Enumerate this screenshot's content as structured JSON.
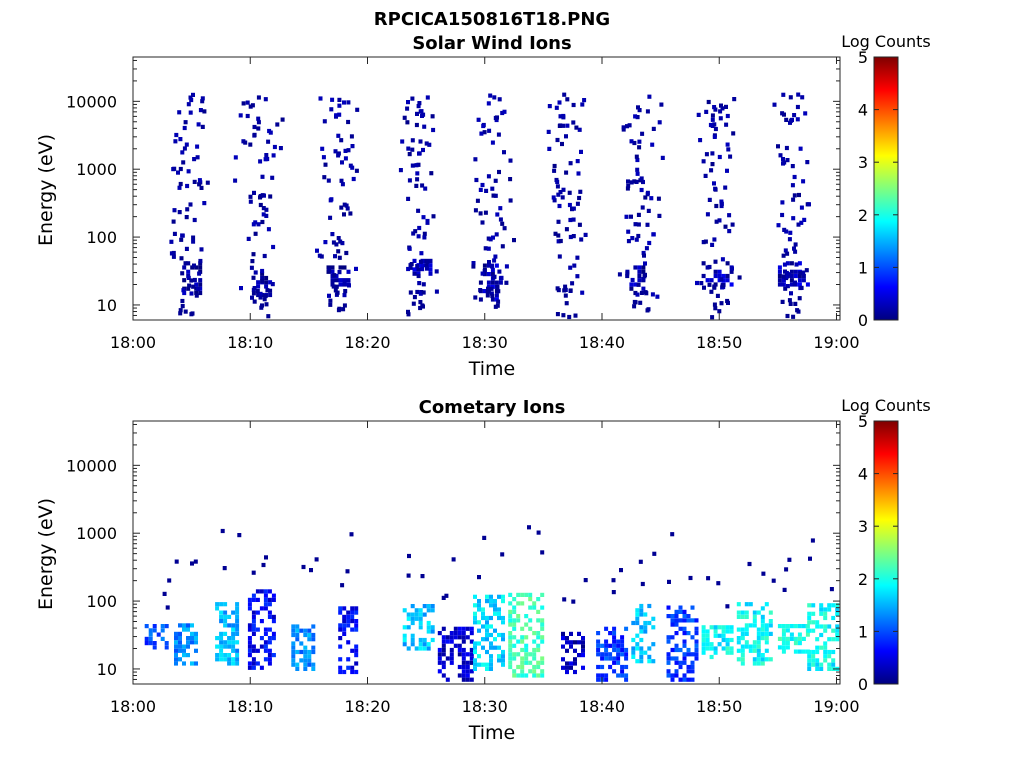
{
  "figure": {
    "title": "RPCICA150816T18.PNG"
  },
  "colorbar": {
    "label": "Log Counts",
    "min": 0,
    "max": 5,
    "ticks": [
      "0",
      "1",
      "2",
      "3",
      "4",
      "5"
    ],
    "colormap": "jet",
    "colors": [
      "#00007f",
      "#0000ff",
      "#007fff",
      "#00ffff",
      "#7fff7f",
      "#ffff00",
      "#ff7f00",
      "#ff0000",
      "#7f0000"
    ]
  },
  "chart_data": [
    {
      "type": "heatmap",
      "title": "Solar Wind Ions",
      "xlabel": "Time",
      "ylabel": "Energy (eV)",
      "x_tick_labels": [
        "18:00",
        "18:10",
        "18:20",
        "18:30",
        "18:40",
        "18:50",
        "19:00"
      ],
      "x_ticks_min": [
        0,
        10,
        20,
        30,
        40,
        50,
        60
      ],
      "xlim_min": [
        0,
        60.3
      ],
      "y_scale": "log",
      "y_tick_labels": [
        "10",
        "100",
        "1000",
        "10000"
      ],
      "y_ticks": [
        10,
        100,
        1000,
        10000
      ],
      "ylim": [
        6,
        45000
      ],
      "colorbar_label": "Log Counts",
      "clim": [
        0,
        5
      ],
      "grid": false,
      "burst_centers_min": [
        4.6,
        10.6,
        17.4,
        24.0,
        30.6,
        36.8,
        43.2,
        49.8,
        56.0
      ],
      "clusters": [
        {
          "t_min": [
            4.2,
            5.8
          ],
          "e_ev": [
            15,
            45
          ],
          "log_counts": 0.1
        },
        {
          "t_min": [
            10.5,
            11.8
          ],
          "e_ev": [
            14,
            30
          ],
          "log_counts": 0.1
        },
        {
          "t_min": [
            16.5,
            18.5
          ],
          "e_ev": [
            20,
            40
          ],
          "log_counts": 0.1
        },
        {
          "t_min": [
            23.5,
            25.5
          ],
          "e_ev": [
            25,
            45
          ],
          "log_counts": 0.3
        },
        {
          "t_min": [
            29.5,
            31.5
          ],
          "e_ev": [
            12,
            40
          ],
          "log_counts": 0.3
        },
        {
          "t_min": [
            42.0,
            43.5
          ],
          "e_ev": [
            15,
            40
          ],
          "log_counts": 0.2
        },
        {
          "t_min": [
            48.5,
            51.0
          ],
          "e_ev": [
            20,
            45
          ],
          "log_counts": 0.3
        },
        {
          "t_min": [
            55.0,
            57.5
          ],
          "e_ev": [
            20,
            45
          ],
          "log_counts": 0.3
        }
      ]
    },
    {
      "type": "heatmap",
      "title": "Cometary Ions",
      "xlabel": "Time",
      "ylabel": "Energy (eV)",
      "x_tick_labels": [
        "18:00",
        "18:10",
        "18:20",
        "18:30",
        "18:40",
        "18:50",
        "19:00"
      ],
      "x_ticks_min": [
        0,
        10,
        20,
        30,
        40,
        50,
        60
      ],
      "xlim_min": [
        0,
        60.3
      ],
      "y_scale": "log",
      "y_tick_labels": [
        "10",
        "100",
        "1000",
        "10000"
      ],
      "y_ticks": [
        10,
        100,
        1000,
        10000
      ],
      "ylim": [
        6,
        45000
      ],
      "colorbar_label": "Log Counts",
      "clim": [
        0,
        5
      ],
      "grid": false,
      "clusters": [
        {
          "t_min": [
            1.0,
            3.0
          ],
          "e_ev": [
            18,
            45
          ],
          "log_counts": 1.0
        },
        {
          "t_min": [
            3.5,
            5.5
          ],
          "e_ev": [
            12,
            45
          ],
          "log_counts": 1.3
        },
        {
          "t_min": [
            7.0,
            9.0
          ],
          "e_ev": [
            12,
            90
          ],
          "log_counts": 1.5
        },
        {
          "t_min": [
            9.8,
            12.0
          ],
          "e_ev": [
            9,
            150
          ],
          "log_counts": 0.6
        },
        {
          "t_min": [
            13.5,
            15.5
          ],
          "e_ev": [
            10,
            45
          ],
          "log_counts": 1.3
        },
        {
          "t_min": [
            17.5,
            19.0
          ],
          "e_ev": [
            9,
            80
          ],
          "log_counts": 0.6
        },
        {
          "t_min": [
            23.0,
            25.5
          ],
          "e_ev": [
            20,
            90
          ],
          "log_counts": 1.6
        },
        {
          "t_min": [
            26.0,
            29.0
          ],
          "e_ev": [
            6,
            40
          ],
          "log_counts": 0.4
        },
        {
          "t_min": [
            29.0,
            31.5
          ],
          "e_ev": [
            10,
            130
          ],
          "log_counts": 1.7
        },
        {
          "t_min": [
            32.0,
            35.0
          ],
          "e_ev": [
            8,
            130
          ],
          "log_counts": 2.2
        },
        {
          "t_min": [
            36.5,
            38.5
          ],
          "e_ev": [
            9,
            35
          ],
          "log_counts": 0.3
        },
        {
          "t_min": [
            39.5,
            42.0
          ],
          "e_ev": [
            6,
            40
          ],
          "log_counts": 0.9
        },
        {
          "t_min": [
            42.5,
            44.5
          ],
          "e_ev": [
            13,
            90
          ],
          "log_counts": 1.6
        },
        {
          "t_min": [
            45.5,
            48.0
          ],
          "e_ev": [
            6,
            90
          ],
          "log_counts": 0.9
        },
        {
          "t_min": [
            48.5,
            51.0
          ],
          "e_ev": [
            15,
            45
          ],
          "log_counts": 1.9
        },
        {
          "t_min": [
            51.5,
            54.5
          ],
          "e_ev": [
            12,
            100
          ],
          "log_counts": 1.9
        },
        {
          "t_min": [
            55.0,
            57.5
          ],
          "e_ev": [
            18,
            45
          ],
          "log_counts": 2.0
        },
        {
          "t_min": [
            57.5,
            60.0
          ],
          "e_ev": [
            10,
            90
          ],
          "log_counts": 1.9
        }
      ]
    }
  ]
}
